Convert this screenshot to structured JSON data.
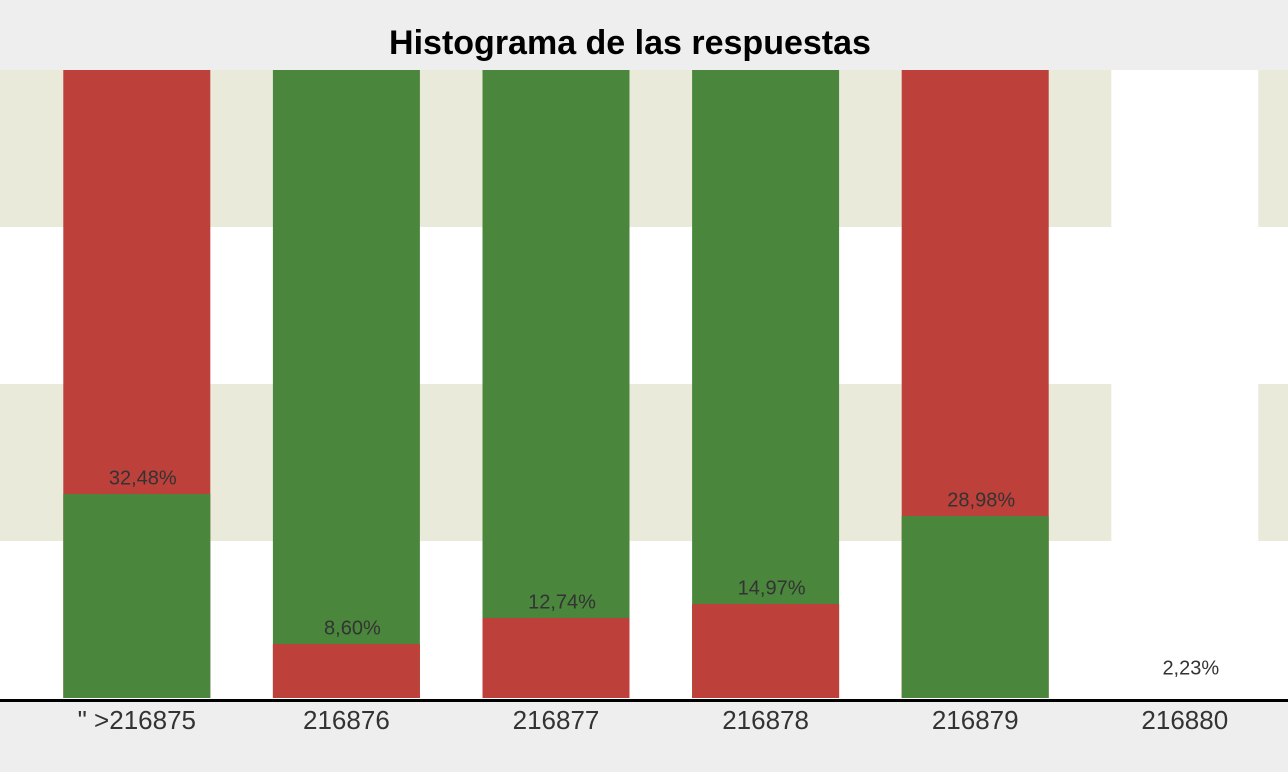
{
  "chart_data": {
    "type": "bar",
    "title": "Histograma de las respuestas",
    "categories": [
      "\" >216875",
      "216876",
      "216877",
      "216878",
      "216879",
      "216880"
    ],
    "values": [
      32.48,
      8.6,
      12.74,
      14.97,
      28.98,
      2.23
    ],
    "value_labels": [
      "32,48%",
      "8,60%",
      "12,74%",
      "14,97%",
      "28,98%",
      "2,23%"
    ],
    "colors": [
      "#4a863c",
      "#bd403a",
      "#bd403a",
      "#bd403a",
      "#4a863c",
      "#ffffff"
    ],
    "fill_colors": [
      "#bd403a",
      "#4a863c",
      "#4a863c",
      "#4a863c",
      "#bd403a",
      "#ffffff"
    ],
    "ylim": [
      0,
      100
    ]
  }
}
